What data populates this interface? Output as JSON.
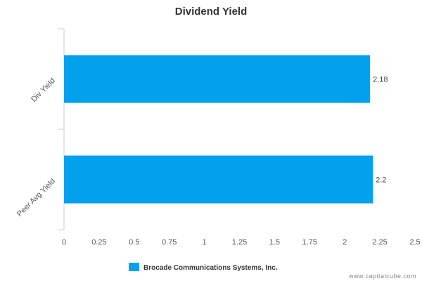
{
  "chart_data": {
    "type": "bar",
    "orientation": "horizontal",
    "title": "Dividend Yield",
    "categories": [
      "Div Yield",
      "Peer Avg Yield"
    ],
    "series": [
      {
        "name": "Brocade Communications Systems, Inc.",
        "values": [
          2.18,
          2.2
        ],
        "color": "#03a0ee"
      }
    ],
    "xlim": [
      0,
      2.5
    ],
    "xticks": [
      "0",
      "0.25",
      "0.5",
      "0.75",
      "1",
      "1.25",
      "1.5",
      "1.75",
      "2",
      "2.25",
      "2.5"
    ],
    "grid": false,
    "legend_position": "bottom"
  },
  "watermark": "www.capitalcube.com"
}
